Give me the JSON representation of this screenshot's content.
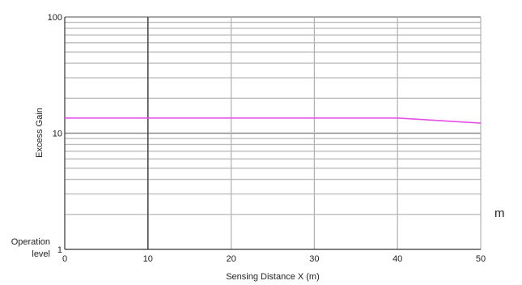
{
  "chart_data": {
    "type": "line",
    "title": "",
    "xlabel": "Sensing Distance X (m)",
    "ylabel": "Excess Gain",
    "x_ticks": [
      "0",
      "10",
      "20",
      "30",
      "40",
      "50"
    ],
    "y_ticks": [
      "1",
      "10",
      "100"
    ],
    "y_scale": "log",
    "xlim": [
      0,
      50
    ],
    "ylim": [
      1,
      100
    ],
    "grid": true,
    "operation_level_label": [
      "Operation",
      "level"
    ],
    "side_label": "m",
    "series": [
      {
        "color": "#e64fe6",
        "x": [
          0,
          10,
          20,
          30,
          40,
          50
        ],
        "y": [
          13.5,
          13.5,
          13.5,
          13.5,
          13.5,
          12.2
        ]
      }
    ]
  }
}
